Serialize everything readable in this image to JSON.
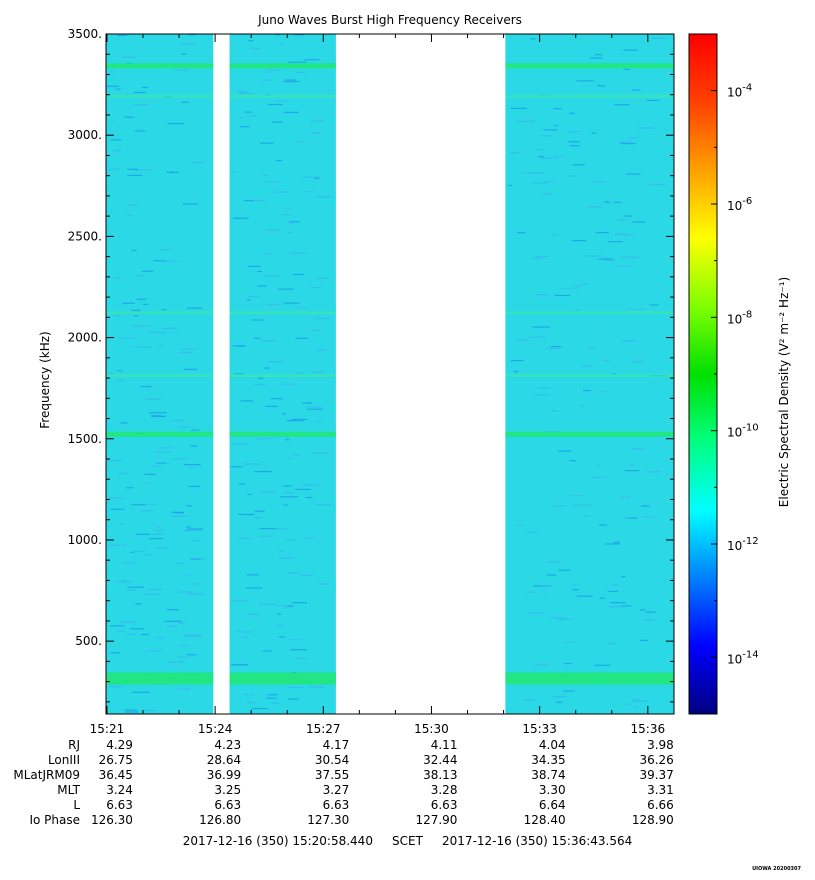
{
  "chart_data": {
    "type": "heatmap",
    "title": "Juno Waves Burst High Frequency Receivers",
    "ylabel": "Frequency (kHz)",
    "y_ticks": [
      500,
      1000,
      1500,
      2000,
      2500,
      3000,
      3500
    ],
    "y_tick_labels": [
      "500.",
      "1000.",
      "1500.",
      "2000.",
      "2500.",
      "3000.",
      "3500."
    ],
    "ylim": [
      140,
      3500
    ],
    "x_range": [
      "15:20:58",
      "15:36:44"
    ],
    "x_tick_labels": [
      "15:21",
      "15:24",
      "15:27",
      "15:30",
      "15:33",
      "15:36"
    ],
    "x_tick_minutes": [
      21,
      24,
      27,
      30,
      33,
      36
    ],
    "data_segments": [
      {
        "start_min": 20.97,
        "end_min": 23.95
      },
      {
        "start_min": 24.4,
        "end_min": 27.35
      },
      {
        "start_min": 32.05,
        "end_min": 36.72
      }
    ],
    "emission_bands_khz": [
      330,
      1520,
      3340,
      3190,
      2120,
      1810
    ],
    "background_level": "1e-12",
    "colorbar": {
      "label": "Electric Spectral Density (V² m⁻² Hz⁻¹)",
      "tick_labels": [
        "10-4",
        "10-6",
        "10-8",
        "10-10",
        "10-12",
        "10-14"
      ],
      "tick_exponents": [
        -4,
        -6,
        -8,
        -10,
        -12,
        -14
      ],
      "range_exponents": [
        -15,
        -3
      ]
    },
    "colors": [
      "#000080",
      "#0000ff",
      "#0080ff",
      "#00ffff",
      "#00ff80",
      "#00e000",
      "#80ff00",
      "#ffff00",
      "#ffa000",
      "#ff4000",
      "#ff0000"
    ]
  },
  "ephemeris": {
    "labels": [
      "RJ",
      "LonIII",
      "MLatJRM09",
      "MLT",
      "L",
      "Io Phase"
    ],
    "rows": [
      [
        "4.29",
        "4.23",
        "4.17",
        "4.11",
        "4.04",
        "3.98"
      ],
      [
        "26.75",
        "28.64",
        "30.54",
        "32.44",
        "34.35",
        "36.26"
      ],
      [
        "36.45",
        "36.99",
        "37.55",
        "38.13",
        "38.74",
        "39.37"
      ],
      [
        "3.24",
        "3.25",
        "3.27",
        "3.28",
        "3.30",
        "3.31"
      ],
      [
        "6.63",
        "6.63",
        "6.63",
        "6.63",
        "6.64",
        "6.66"
      ],
      [
        "126.30",
        "126.80",
        "127.30",
        "127.90",
        "128.40",
        "128.90"
      ]
    ]
  },
  "footer": {
    "start": "2017-12-16 (350) 15:20:58.440",
    "scet": "SCET",
    "end": "2017-12-16 (350) 15:36:43.564",
    "stamp": "UIOWA 20200307"
  }
}
